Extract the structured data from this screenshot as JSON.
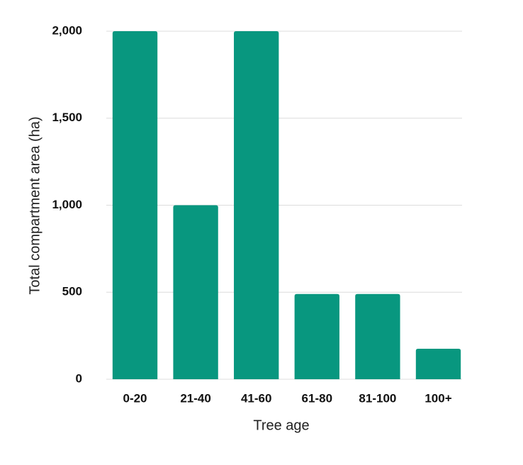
{
  "chart_data": {
    "type": "bar",
    "x_label": "Tree age",
    "y_label": "Total compartment area (ha)",
    "categories": [
      "0-20",
      "21-40",
      "41-60",
      "61-80",
      "81-100",
      "100+"
    ],
    "values": [
      2000,
      1000,
      2000,
      490,
      490,
      175
    ],
    "color": "#08977f",
    "ylim": [
      0,
      2000
    ],
    "yticks": [
      0,
      500,
      {
        "value": 1000,
        "label": "1,000"
      },
      {
        "value": 1500,
        "label": "1,500"
      },
      {
        "value": 2000,
        "label": "2,000"
      }
    ],
    "grid": true
  }
}
